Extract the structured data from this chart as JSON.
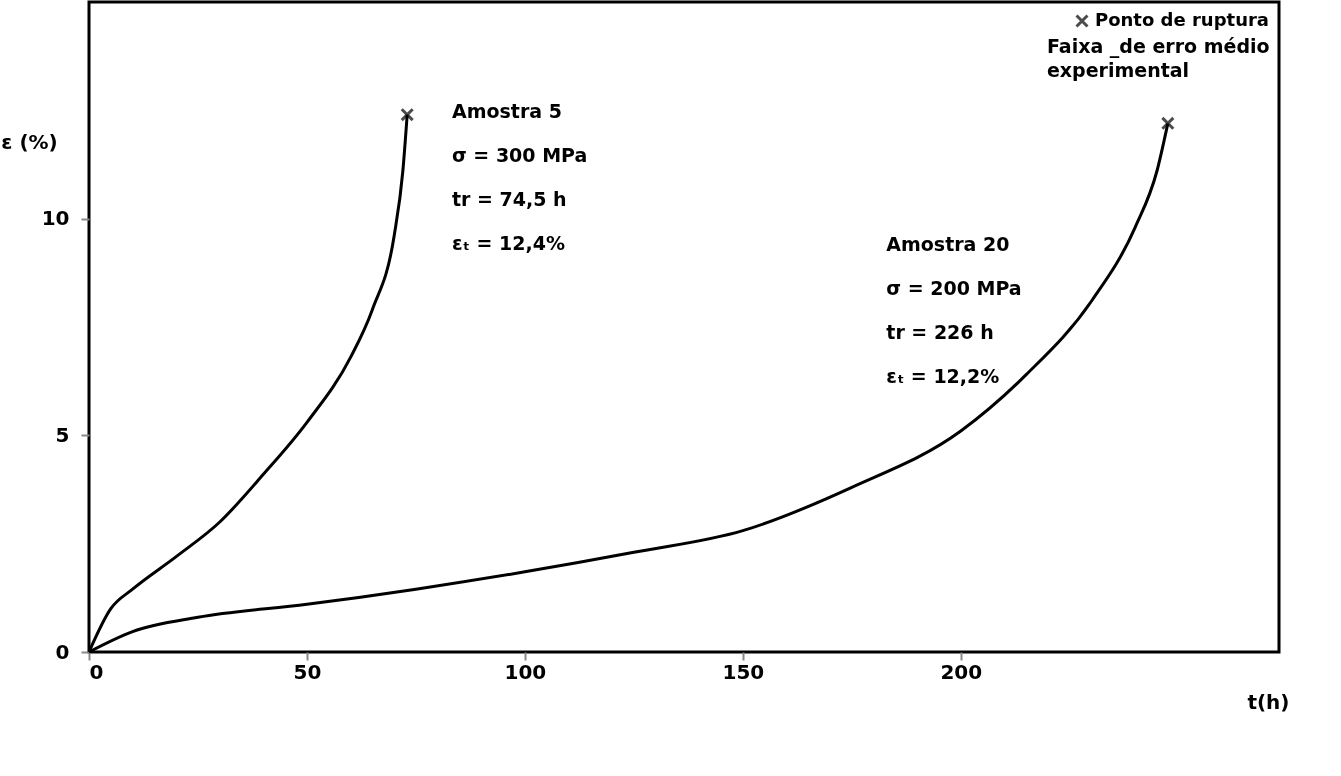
{
  "chart_data": {
    "type": "line",
    "xlabel": "t(h)",
    "ylabel": "ε (%)",
    "xlim": [
      0,
      273
    ],
    "ylim": [
      0,
      15
    ],
    "xticks": [
      0,
      50,
      100,
      150,
      200
    ],
    "yticks": [
      0,
      5,
      10
    ],
    "grid": false,
    "legend": "top right",
    "line_style": "solid",
    "series": [
      {
        "color": "#000000",
        "marker": "none",
        "x": [
          0,
          5,
          10,
          20,
          30,
          40,
          50,
          60,
          65,
          70,
          72,
          73
        ],
        "values": [
          0,
          1.0,
          1.45,
          2.2,
          3.0,
          4.1,
          5.3,
          6.8,
          7.9,
          9.6,
          11.1,
          12.4
        ]
      },
      {
        "color": "#000000",
        "marker": "none",
        "x": [
          0,
          10,
          25,
          50,
          75,
          100,
          125,
          150,
          175,
          200,
          215,
          230,
          240,
          245,
          247.5
        ],
        "values": [
          0,
          0.47,
          0.8,
          1.1,
          1.45,
          1.85,
          2.3,
          2.8,
          3.8,
          5.1,
          6.4,
          8.1,
          9.8,
          11.1,
          12.2
        ]
      },
      {
        "type": "scatter",
        "name": "Ponto de ruptura",
        "color": "#000000",
        "marker": "cross",
        "x": [
          73,
          247.5
        ],
        "values": [
          12.4,
          12.2
        ]
      }
    ],
    "annotations": [
      "Faixa _de erro médio experimental",
      "Amostra 5\nσ = 300 MPa\ntr = 74,5 h\nεₜ = 12,4%",
      "Amostra 20\nσ = 200 MPa\ntr = 226 h\nεₜ = 12,2%"
    ]
  }
}
